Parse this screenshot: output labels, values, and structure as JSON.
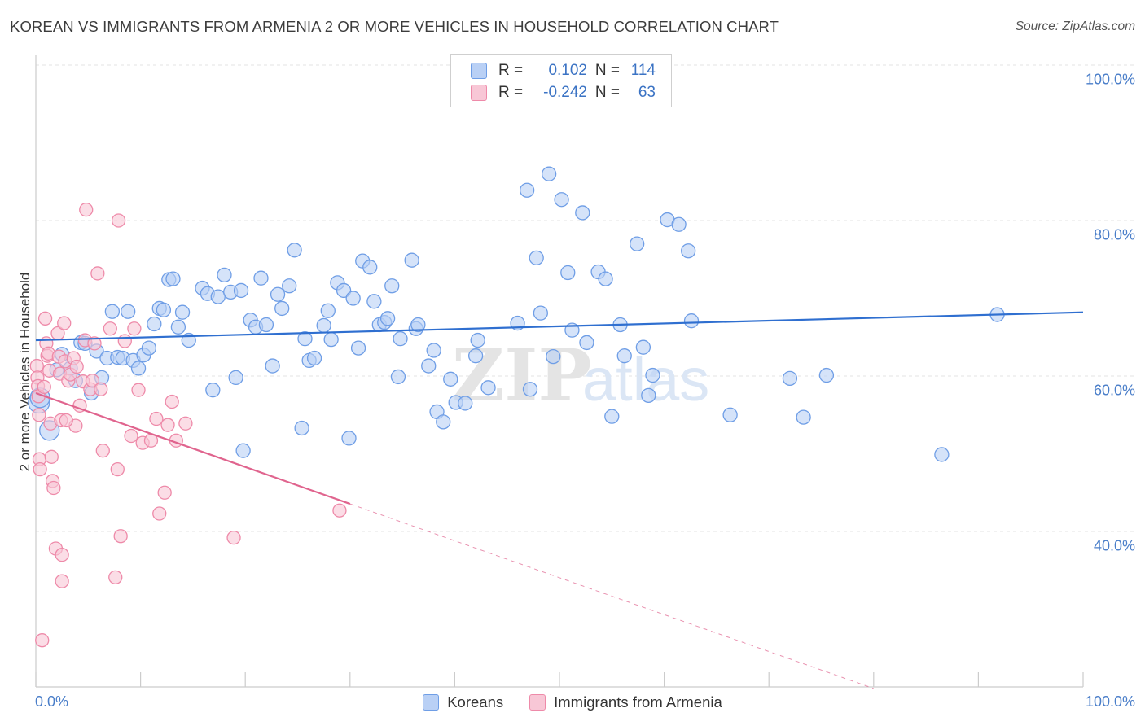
{
  "title": "KOREAN VS IMMIGRANTS FROM ARMENIA 2 OR MORE VEHICLES IN HOUSEHOLD CORRELATION CHART",
  "source": "Source: ZipAtlas.com",
  "watermark": "ZIPatlas",
  "legend_top": {
    "rows": [
      {
        "r_label": "R =",
        "r_value": "0.102",
        "n_label": "N =",
        "n_value": "114",
        "color": "#6f9ee6",
        "fill": "#b9d0f5"
      },
      {
        "r_label": "R =",
        "r_value": "-0.242",
        "n_label": "N =",
        "n_value": "63",
        "color": "#ee8aa9",
        "fill": "#f8c7d6"
      }
    ]
  },
  "legend_bottom": {
    "koreans": "Koreans",
    "armenia": "Immigrants from Armenia"
  },
  "colors": {
    "blue": "#6f9ee6",
    "blue_fill": "#b9d0f5",
    "blue_line": "#2f6fd0",
    "pink": "#ee8aa9",
    "pink_fill": "#f8c7d6",
    "pink_line": "#e0648e",
    "tick_text": "#4a7ec9"
  },
  "chart_data": {
    "type": "scatter",
    "title": "KOREAN VS IMMIGRANTS FROM ARMENIA 2 OR MORE VEHICLES IN HOUSEHOLD CORRELATION CHART",
    "xlabel": "",
    "ylabel": "2 or more Vehicles in Household",
    "xlim": [
      0,
      100
    ],
    "ylim": [
      20,
      100
    ],
    "x_tick_labels": [
      "0.0%",
      "100.0%"
    ],
    "y_ticks": [
      40,
      60,
      80,
      100
    ],
    "y_tick_labels": [
      "40.0%",
      "60.0%",
      "80.0%",
      "100.0%"
    ],
    "grid": true,
    "legend_position": "top-center",
    "series": [
      {
        "name": "Koreans",
        "trend": {
          "x": [
            0,
            100
          ],
          "y": [
            64.6,
            68.2
          ],
          "solid_to": 100
        },
        "points": [
          [
            0.3,
            56.6
          ],
          [
            0.4,
            57.2
          ],
          [
            1.3,
            53
          ],
          [
            2,
            60.8
          ],
          [
            2.5,
            62.8
          ],
          [
            3.3,
            61
          ],
          [
            3.8,
            59.4
          ],
          [
            4.3,
            64.3
          ],
          [
            4.7,
            64.2
          ],
          [
            5.3,
            57.8
          ],
          [
            5.8,
            63.2
          ],
          [
            6.3,
            59.8
          ],
          [
            6.8,
            62.3
          ],
          [
            7.3,
            68.3
          ],
          [
            7.8,
            62.4
          ],
          [
            8.3,
            62.3
          ],
          [
            8.8,
            68.3
          ],
          [
            9.3,
            62
          ],
          [
            9.8,
            61
          ],
          [
            10.3,
            62.7
          ],
          [
            10.8,
            63.6
          ],
          [
            11.3,
            66.7
          ],
          [
            11.8,
            68.7
          ],
          [
            12.2,
            68.5
          ],
          [
            12.7,
            72.4
          ],
          [
            13.1,
            72.5
          ],
          [
            13.6,
            66.3
          ],
          [
            14,
            68.2
          ],
          [
            14.6,
            64.6
          ],
          [
            15.9,
            71.3
          ],
          [
            16.4,
            70.6
          ],
          [
            16.9,
            58.2
          ],
          [
            17.4,
            70.2
          ],
          [
            18,
            73
          ],
          [
            18.6,
            70.8
          ],
          [
            19.1,
            59.8
          ],
          [
            19.6,
            71
          ],
          [
            19.8,
            50.4
          ],
          [
            20.5,
            67.2
          ],
          [
            21,
            66.3
          ],
          [
            21.5,
            72.6
          ],
          [
            22,
            66.6
          ],
          [
            22.6,
            61.3
          ],
          [
            23.1,
            70.5
          ],
          [
            23.5,
            68.7
          ],
          [
            24.2,
            71.6
          ],
          [
            24.7,
            76.2
          ],
          [
            25.4,
            53.3
          ],
          [
            25.7,
            64.8
          ],
          [
            26.1,
            62
          ],
          [
            26.6,
            62.3
          ],
          [
            27.5,
            66.5
          ],
          [
            27.9,
            68.4
          ],
          [
            28.2,
            64.7
          ],
          [
            28.8,
            72
          ],
          [
            29.4,
            71
          ],
          [
            29.9,
            52
          ],
          [
            30.3,
            70
          ],
          [
            30.8,
            63.6
          ],
          [
            31.2,
            74.8
          ],
          [
            31.9,
            74
          ],
          [
            32.3,
            69.6
          ],
          [
            32.8,
            66.6
          ],
          [
            33.3,
            66.9
          ],
          [
            33.6,
            67.4
          ],
          [
            34,
            71.6
          ],
          [
            34.6,
            59.9
          ],
          [
            34.8,
            64.8
          ],
          [
            35.9,
            74.9
          ],
          [
            36.3,
            66.1
          ],
          [
            36.5,
            66.6
          ],
          [
            37.5,
            61.3
          ],
          [
            38,
            63.3
          ],
          [
            38.3,
            55.4
          ],
          [
            38.9,
            54.1
          ],
          [
            39.6,
            59.6
          ],
          [
            40.1,
            56.6
          ],
          [
            41,
            56.5
          ],
          [
            42,
            62.6
          ],
          [
            42.2,
            64.6
          ],
          [
            43.2,
            58.5
          ],
          [
            46,
            66.8
          ],
          [
            47.2,
            58.3
          ],
          [
            46.9,
            83.9
          ],
          [
            47.8,
            75.2
          ],
          [
            48.2,
            68.1
          ],
          [
            49,
            86
          ],
          [
            49.4,
            62.5
          ],
          [
            50.2,
            82.7
          ],
          [
            50.8,
            73.3
          ],
          [
            51.2,
            65.9
          ],
          [
            52.2,
            81
          ],
          [
            52.6,
            64.3
          ],
          [
            53.7,
            73.4
          ],
          [
            54.4,
            72.5
          ],
          [
            55,
            54.8
          ],
          [
            55.8,
            66.6
          ],
          [
            56.2,
            62.6
          ],
          [
            57.4,
            77
          ],
          [
            58,
            63.7
          ],
          [
            58.5,
            57.5
          ],
          [
            58.9,
            60.1
          ],
          [
            60.3,
            80.1
          ],
          [
            61.4,
            79.5
          ],
          [
            62.3,
            76.1
          ],
          [
            62.6,
            67.1
          ],
          [
            66.3,
            55
          ],
          [
            72,
            59.7
          ],
          [
            73.3,
            54.7
          ],
          [
            75.5,
            60.1
          ],
          [
            86.5,
            49.9
          ],
          [
            91.8,
            67.9
          ]
        ]
      },
      {
        "name": "Immigrants from Armenia",
        "trend": {
          "x": [
            0,
            80
          ],
          "y": [
            57.8,
            19.8
          ],
          "solid_to": 30
        },
        "points": [
          [
            0.1,
            61.3
          ],
          [
            0.15,
            59.8
          ],
          [
            0.2,
            58.7
          ],
          [
            0.25,
            57.4
          ],
          [
            0.3,
            55
          ],
          [
            0.35,
            49.3
          ],
          [
            0.4,
            48
          ],
          [
            0.6,
            26
          ],
          [
            0.9,
            67.4
          ],
          [
            1,
            64.2
          ],
          [
            1.1,
            62.6
          ],
          [
            1.2,
            62.9
          ],
          [
            1.3,
            60.7
          ],
          [
            1.4,
            53.9
          ],
          [
            1.5,
            49.6
          ],
          [
            1.6,
            46.5
          ],
          [
            1.7,
            45.6
          ],
          [
            1.9,
            37.8
          ],
          [
            2.1,
            65.5
          ],
          [
            2.2,
            62.5
          ],
          [
            2.3,
            60.3
          ],
          [
            2.4,
            54.3
          ],
          [
            2.5,
            37
          ],
          [
            2.5,
            33.6
          ],
          [
            2.7,
            66.8
          ],
          [
            2.8,
            61.9
          ],
          [
            3.1,
            59.4
          ],
          [
            3.3,
            60.2
          ],
          [
            3.6,
            62.3
          ],
          [
            3.8,
            53.6
          ],
          [
            3.9,
            61.2
          ],
          [
            4.2,
            56.2
          ],
          [
            4.5,
            59.3
          ],
          [
            4.7,
            64.6
          ],
          [
            4.8,
            81.4
          ],
          [
            5.2,
            58.3
          ],
          [
            5.4,
            59.4
          ],
          [
            5.6,
            64.2
          ],
          [
            5.9,
            73.2
          ],
          [
            6.2,
            58.3
          ],
          [
            6.4,
            50.4
          ],
          [
            7.1,
            66.1
          ],
          [
            7.6,
            34.1
          ],
          [
            7.8,
            48
          ],
          [
            8.1,
            39.4
          ],
          [
            7.9,
            80
          ],
          [
            9.1,
            52.3
          ],
          [
            10.2,
            51.4
          ],
          [
            9.4,
            66.1
          ],
          [
            9.8,
            58.2
          ],
          [
            11,
            51.7
          ],
          [
            11.5,
            54.5
          ],
          [
            11.8,
            42.3
          ],
          [
            12.3,
            45
          ],
          [
            12.6,
            53.7
          ],
          [
            13,
            56.7
          ],
          [
            13.4,
            51.7
          ],
          [
            14.3,
            53.9
          ],
          [
            18.9,
            39.2
          ],
          [
            29,
            42.7
          ],
          [
            8.5,
            64.5
          ],
          [
            2.9,
            54.3
          ],
          [
            0.8,
            58.6
          ]
        ]
      }
    ]
  }
}
